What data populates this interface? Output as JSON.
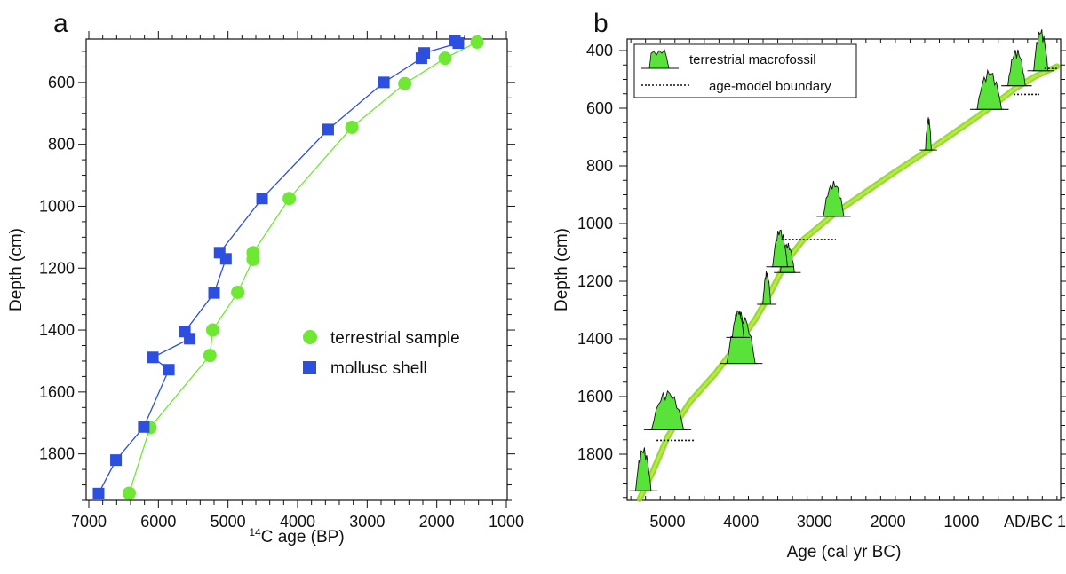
{
  "chart_data": [
    {
      "type": "scatter",
      "panel_label": "a",
      "xlabel_sup": "14",
      "xlabel_main": "C age (BP)",
      "ylabel": "Depth (cm)",
      "xlim": [
        7000,
        1000
      ],
      "ylim": [
        1950,
        460
      ],
      "x_ticks": [
        7000,
        6000,
        5000,
        4000,
        3000,
        2000,
        1000
      ],
      "y_ticks": [
        600,
        800,
        1000,
        1200,
        1400,
        1600,
        1800
      ],
      "series": [
        {
          "name": "terrestrial sample",
          "color": "#6ee832",
          "marker": "circle",
          "points": [
            {
              "age": 1420,
              "depth": 470
            },
            {
              "age": 1880,
              "depth": 522
            },
            {
              "age": 2460,
              "depth": 604
            },
            {
              "age": 3220,
              "depth": 745
            },
            {
              "age": 4120,
              "depth": 975
            },
            {
              "age": 4640,
              "depth": 1150
            },
            {
              "age": 4640,
              "depth": 1172
            },
            {
              "age": 4860,
              "depth": 1278
            },
            {
              "age": 5220,
              "depth": 1400
            },
            {
              "age": 5260,
              "depth": 1482
            },
            {
              "age": 6120,
              "depth": 1715
            },
            {
              "age": 6420,
              "depth": 1927
            }
          ]
        },
        {
          "name": "mollusc shell",
          "color": "#2d4fe0",
          "marker": "square",
          "points": [
            {
              "age": 1740,
              "depth": 465
            },
            {
              "age": 1690,
              "depth": 473
            },
            {
              "age": 2180,
              "depth": 505
            },
            {
              "age": 2220,
              "depth": 522
            },
            {
              "age": 2760,
              "depth": 600
            },
            {
              "age": 3560,
              "depth": 752
            },
            {
              "age": 4510,
              "depth": 975
            },
            {
              "age": 5120,
              "depth": 1150
            },
            {
              "age": 5030,
              "depth": 1170
            },
            {
              "age": 5200,
              "depth": 1280
            },
            {
              "age": 5620,
              "depth": 1405
            },
            {
              "age": 5550,
              "depth": 1428
            },
            {
              "age": 6080,
              "depth": 1488
            },
            {
              "age": 5850,
              "depth": 1528
            },
            {
              "age": 6210,
              "depth": 1713
            },
            {
              "age": 6610,
              "depth": 1820
            },
            {
              "age": 6860,
              "depth": 1928
            }
          ]
        }
      ]
    },
    {
      "type": "area",
      "panel_label": "b",
      "xlabel": "Age (cal yr BC)",
      "ylabel": "Depth (cm)",
      "xlim": [
        5550,
        -350
      ],
      "ylim": [
        1960,
        360
      ],
      "x_ticks": [
        5000,
        4000,
        3000,
        2000,
        1000,
        0
      ],
      "x_tick_labels": [
        "5000",
        "4000",
        "3000",
        "2000",
        "1000",
        "AD/BC 1"
      ],
      "y_ticks": [
        400,
        600,
        800,
        1000,
        1200,
        1400,
        1600,
        1800
      ],
      "legend": {
        "placement": "top-left",
        "macrofossil_label": "terrestrial macrofossil",
        "boundary_label": "age-model boundary"
      },
      "age_model": {
        "name": "age model",
        "color": "#8fd42a",
        "points": [
          {
            "age": 5380,
            "depth": 1955
          },
          {
            "age": 5200,
            "depth": 1860
          },
          {
            "age": 5000,
            "depth": 1740
          },
          {
            "age": 4700,
            "depth": 1620
          },
          {
            "age": 4350,
            "depth": 1520
          },
          {
            "age": 4050,
            "depth": 1420
          },
          {
            "age": 3800,
            "depth": 1330
          },
          {
            "age": 3580,
            "depth": 1230
          },
          {
            "age": 3380,
            "depth": 1130
          },
          {
            "age": 3150,
            "depth": 1055
          },
          {
            "age": 2700,
            "depth": 960
          },
          {
            "age": 1900,
            "depth": 820
          },
          {
            "age": 1300,
            "depth": 720
          },
          {
            "age": 620,
            "depth": 600
          },
          {
            "age": 260,
            "depth": 530
          },
          {
            "age": 0,
            "depth": 490
          },
          {
            "age": -300,
            "depth": 455
          }
        ]
      },
      "macrofossils": [
        {
          "depth": 1927,
          "center": 5330,
          "width": 240,
          "height": 50
        },
        {
          "depth": 1715,
          "center": 5000,
          "width": 500,
          "height": 45
        },
        {
          "depth": 1485,
          "center": 4000,
          "width": 440,
          "height": 58
        },
        {
          "depth": 1395,
          "center": 4040,
          "width": 180,
          "height": 32
        },
        {
          "depth": 1280,
          "center": 3650,
          "width": 120,
          "height": 38
        },
        {
          "depth": 1170,
          "center": 3370,
          "width": 220,
          "height": 34
        },
        {
          "depth": 1150,
          "center": 3470,
          "width": 230,
          "height": 44
        },
        {
          "depth": 975,
          "center": 2740,
          "width": 320,
          "height": 40
        },
        {
          "depth": 745,
          "center": 1450,
          "width": 90,
          "height": 38
        },
        {
          "depth": 604,
          "center": 620,
          "width": 380,
          "height": 45
        },
        {
          "depth": 522,
          "center": 250,
          "width": 270,
          "height": 42
        },
        {
          "depth": 470,
          "center": -80,
          "width": 220,
          "height": 48
        }
      ],
      "boundaries": [
        {
          "depth": 1752,
          "from": 5150,
          "to": 4630
        },
        {
          "depth": 1055,
          "from": 3450,
          "to": 2710
        },
        {
          "depth": 552,
          "from": 290,
          "to": -60
        },
        {
          "depth": 462,
          "from": -130,
          "to": -300
        }
      ]
    }
  ]
}
